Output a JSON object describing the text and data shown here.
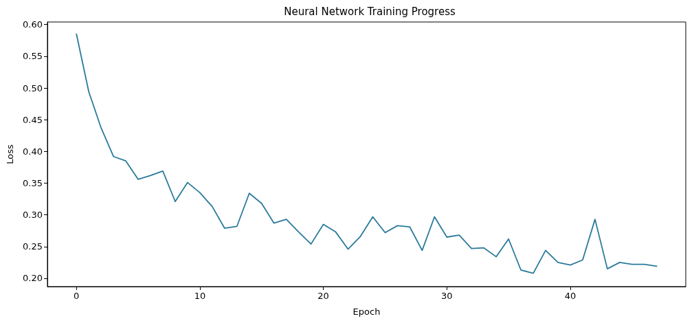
{
  "chart_data": {
    "type": "line",
    "title": "Neural Network Training Progress",
    "xlabel": "Epoch",
    "ylabel": "Loss",
    "x": [
      0,
      1,
      2,
      3,
      4,
      5,
      6,
      7,
      8,
      9,
      10,
      11,
      12,
      13,
      14,
      15,
      16,
      17,
      18,
      19,
      20,
      21,
      22,
      23,
      24,
      25,
      26,
      27,
      28,
      29,
      30,
      31,
      32,
      33,
      34,
      35,
      36,
      37,
      38,
      39,
      40,
      41,
      42,
      43,
      44,
      45,
      46,
      47
    ],
    "series": [
      {
        "color": "#2a7a9b",
        "values": [
          0.585,
          0.494,
          0.437,
          0.392,
          0.385,
          0.356,
          0.362,
          0.369,
          0.321,
          0.351,
          0.335,
          0.313,
          0.279,
          0.282,
          0.334,
          0.318,
          0.287,
          0.293,
          0.273,
          0.254,
          0.285,
          0.273,
          0.246,
          0.266,
          0.297,
          0.272,
          0.283,
          0.281,
          0.244,
          0.297,
          0.265,
          0.268,
          0.247,
          0.248,
          0.234,
          0.262,
          0.213,
          0.208,
          0.244,
          0.225,
          0.221,
          0.229,
          0.293,
          0.215,
          0.225,
          0.222,
          0.222,
          0.219
        ]
      }
    ],
    "xlim": [
      -2.35,
      49.35
    ],
    "xticks": [
      0,
      10,
      20,
      30,
      40
    ],
    "ylim": [
      0.187,
      0.604
    ],
    "yticks": [
      {
        "value": 0.2,
        "label": "0.20"
      },
      {
        "value": 0.25,
        "label": "0.25"
      },
      {
        "value": 0.3,
        "label": "0.30"
      },
      {
        "value": 0.35,
        "label": "0.35"
      },
      {
        "value": 0.4,
        "label": "0.40"
      },
      {
        "value": 0.45,
        "label": "0.45"
      },
      {
        "value": 0.5,
        "label": "0.50"
      },
      {
        "value": 0.55,
        "label": "0.55"
      },
      {
        "value": 0.6,
        "label": "0.60"
      }
    ],
    "marker": "none",
    "line_style": "solid"
  }
}
